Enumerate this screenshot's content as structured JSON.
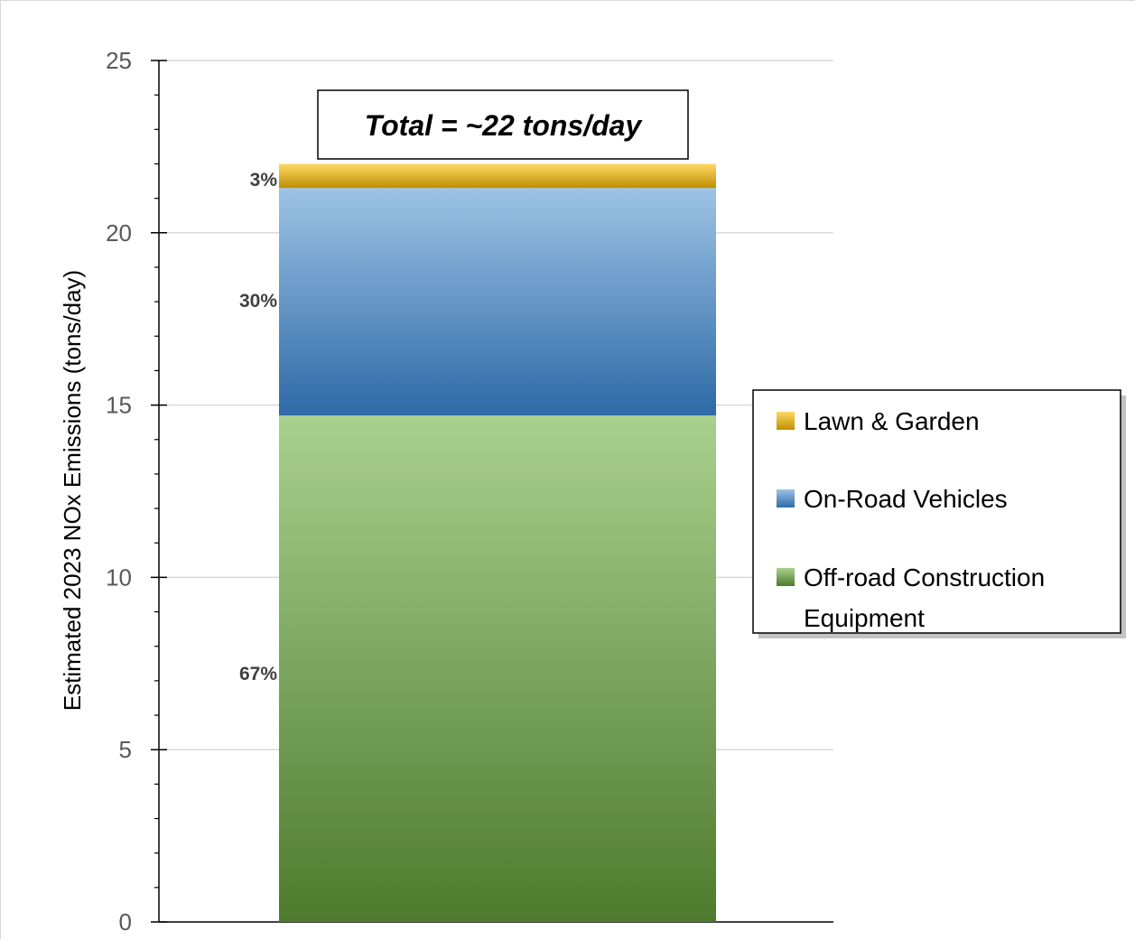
{
  "chart_data": {
    "type": "bar",
    "stacked": true,
    "categories": [
      ""
    ],
    "ylabel": "Estimated 2023 NOx Emissions (tons/day)",
    "ylim": [
      0,
      25
    ],
    "yticks": [
      "0",
      "5",
      "10",
      "15",
      "20",
      "25"
    ],
    "grid": true,
    "legend_position": "right",
    "annotation": "Total = ~22 tons/day",
    "series": [
      {
        "name": "Off-road Construction Equipment",
        "legend_lines": [
          "Off-road Construction",
          "Equipment"
        ],
        "values": [
          14.7
        ],
        "percent_label": "67%",
        "color_top": "#a9d18e",
        "color_bottom": "#4e7a2e"
      },
      {
        "name": "On-Road Vehicles",
        "legend_lines": [
          "On-Road Vehicles"
        ],
        "values": [
          6.6
        ],
        "percent_label": "30%",
        "color_top": "#9dc3e6",
        "color_bottom": "#2e6aa6"
      },
      {
        "name": "Lawn & Garden",
        "legend_lines": [
          "Lawn & Garden"
        ],
        "values": [
          0.7
        ],
        "percent_label": "3%",
        "color_top": "#ffd966",
        "color_bottom": "#bf8f00"
      }
    ]
  }
}
